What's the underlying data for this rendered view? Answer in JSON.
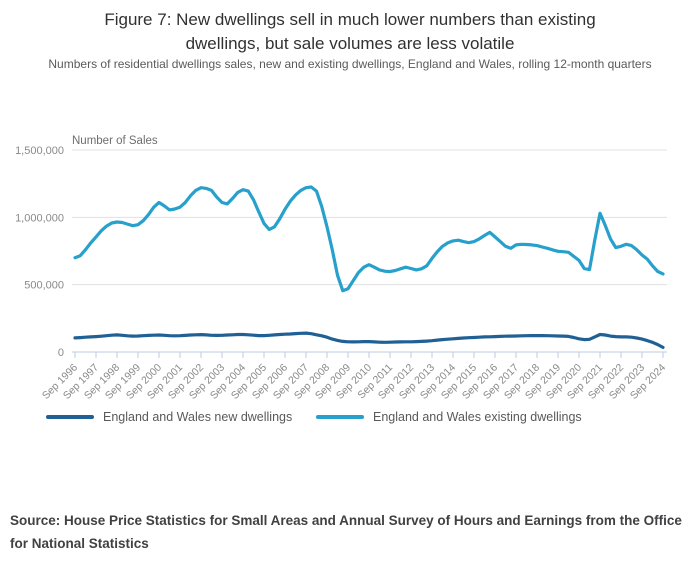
{
  "title": "Figure 7: New dwellings sell in much lower numbers than existing dwellings, but sale volumes are less volatile",
  "subtitle": "Numbers of residential dwellings sales, new and existing dwellings, England and Wales, rolling 12-month quarters",
  "axis_title": "Number of Sales",
  "source": "Source: House Price Statistics for Small Areas and Annual Survey of Hours and Earnings from the Office for National Statistics",
  "colors": {
    "new_dwellings_line": "#206095",
    "existing_dwellings_line": "#27A0CC",
    "gridline": "#e0e0e0",
    "axis_line": "#c9d3e6",
    "axis_text": "#8a8a8a",
    "legend_text": "#595959",
    "title_text": "#323132",
    "source_text": "#414042"
  },
  "legend": [
    {
      "label": "England and Wales new dwellings",
      "color": "#206095"
    },
    {
      "label": "England and Wales existing dwellings",
      "color": "#27A0CC"
    }
  ],
  "chart_data": {
    "type": "line",
    "title": "Figure 7: New dwellings sell in much lower numbers than existing dwellings, but sale volumes are less volatile",
    "subtitle": "Numbers of residential dwellings sales, new and existing dwellings, England and Wales, rolling 12-month quarters",
    "ylabel": "Number of Sales",
    "xlabel": "",
    "ylim": [
      0,
      1500000
    ],
    "grid": "horizontal",
    "legend_position": "bottom",
    "x_start": "Sep 1996",
    "x_end": "Sep 2024",
    "x_interval": "quarterly (rolling 12-month periods)",
    "y_ticks": [
      {
        "label": "1,500,000",
        "value": 1500000
      },
      {
        "label": "1,000,000",
        "value": 1000000
      },
      {
        "label": "500,000",
        "value": 500000
      },
      {
        "label": "0",
        "value": 0
      }
    ],
    "x_tick_labels": [
      "Sep 1996",
      "Sep 1997",
      "Sep 1998",
      "Sep 1999",
      "Sep 2000",
      "Sep 2001",
      "Sep 2002",
      "Sep 2003",
      "Sep 2004",
      "Sep 2005",
      "Sep 2006",
      "Sep 2007",
      "Sep 2008",
      "Sep 2009",
      "Sep 2010",
      "Sep 2011",
      "Sep 2012",
      "Sep 2013",
      "Sep 2014",
      "Sep 2015",
      "Sep 2016",
      "Sep 2017",
      "Sep 2018",
      "Sep 2019",
      "Sep 2020",
      "Sep 2021",
      "Sep 2022",
      "Sep 2023",
      "Sep 2024"
    ],
    "series": [
      {
        "id": "new-dwellings",
        "name": "England and Wales new dwellings",
        "color": "#206095",
        "values": [
          105000,
          107000,
          110000,
          112000,
          114000,
          117000,
          121000,
          125000,
          127000,
          124000,
          120000,
          118000,
          119000,
          121000,
          123000,
          125000,
          126000,
          124000,
          121000,
          120000,
          121000,
          123000,
          126000,
          128000,
          129000,
          127000,
          124000,
          123000,
          124000,
          126000,
          128000,
          130000,
          130000,
          128000,
          125000,
          122000,
          122000,
          124000,
          127000,
          130000,
          132000,
          134000,
          137000,
          139000,
          140000,
          136000,
          128000,
          120000,
          110000,
          96000,
          86000,
          79000,
          76000,
          75000,
          76000,
          77000,
          77000,
          75000,
          73000,
          72000,
          73000,
          74000,
          75000,
          76000,
          76000,
          77000,
          79000,
          81000,
          84000,
          88000,
          92000,
          95000,
          98000,
          101000,
          104000,
          106000,
          108000,
          110000,
          112000,
          113000,
          114000,
          116000,
          117000,
          118000,
          119000,
          120000,
          121000,
          122000,
          122000,
          122000,
          121000,
          120000,
          119000,
          118000,
          116000,
          108000,
          98000,
          92000,
          94000,
          112000,
          130000,
          126000,
          118000,
          114000,
          112000,
          112000,
          110000,
          104000,
          96000,
          85000,
          72000,
          55000,
          34000
        ]
      },
      {
        "id": "existing-dwellings",
        "name": "England and Wales existing dwellings",
        "color": "#27A0CC",
        "values": [
          700000,
          715000,
          760000,
          810000,
          855000,
          900000,
          935000,
          958000,
          965000,
          962000,
          950000,
          938000,
          945000,
          975000,
          1020000,
          1075000,
          1110000,
          1085000,
          1055000,
          1062000,
          1075000,
          1110000,
          1160000,
          1200000,
          1220000,
          1215000,
          1200000,
          1150000,
          1110000,
          1100000,
          1140000,
          1185000,
          1205000,
          1195000,
          1130000,
          1040000,
          955000,
          910000,
          930000,
          990000,
          1060000,
          1120000,
          1165000,
          1200000,
          1220000,
          1225000,
          1195000,
          1080000,
          930000,
          760000,
          570000,
          455000,
          470000,
          530000,
          590000,
          630000,
          648000,
          630000,
          610000,
          600000,
          597000,
          605000,
          618000,
          630000,
          620000,
          610000,
          618000,
          640000,
          695000,
          745000,
          785000,
          810000,
          825000,
          830000,
          820000,
          812000,
          820000,
          840000,
          865000,
          888000,
          855000,
          820000,
          785000,
          770000,
          795000,
          800000,
          798000,
          795000,
          790000,
          780000,
          770000,
          758000,
          748000,
          745000,
          740000,
          710000,
          680000,
          620000,
          612000,
          830000,
          1030000,
          940000,
          840000,
          775000,
          785000,
          800000,
          790000,
          760000,
          720000,
          690000,
          640000,
          598000,
          580000
        ]
      }
    ]
  }
}
